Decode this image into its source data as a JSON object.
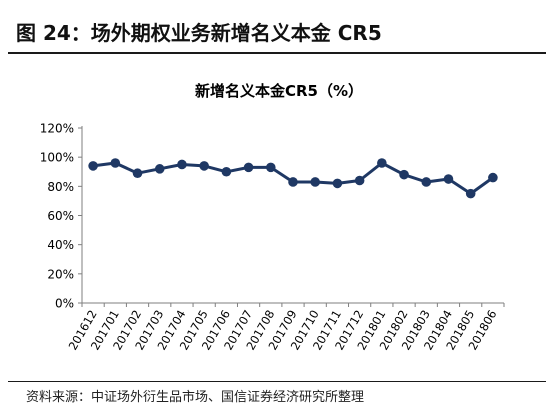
{
  "figure": {
    "title": "图 24：场外期权业务新增名义本金 CR5",
    "source": "资料来源：中证场外衍生品市场、国信证券经济研究所整理"
  },
  "chart_data": {
    "type": "line",
    "title": "新增名义本金CR5（%）",
    "xlabel": "",
    "ylabel": "",
    "categories": [
      "201612",
      "201701",
      "201702",
      "201703",
      "201704",
      "201705",
      "201706",
      "201707",
      "201708",
      "201709",
      "201710",
      "201711",
      "201712",
      "201801",
      "201802",
      "201803",
      "201804",
      "201805",
      "201806"
    ],
    "series": [
      {
        "name": "",
        "values": [
          94,
          96,
          89,
          92,
          95,
          94,
          90,
          93,
          93,
          83,
          83,
          82,
          84,
          96,
          88,
          83,
          85,
          75,
          86
        ]
      }
    ],
    "y_ticks": [
      "0%",
      "20%",
      "40%",
      "60%",
      "80%",
      "100%",
      "120%"
    ],
    "ylim": [
      0,
      120
    ],
    "grid": false,
    "legend": "none",
    "colors": {
      "line": "#1f3864",
      "marker": "#1f3864",
      "axis": "#7f7f7f",
      "text": "#000000"
    }
  }
}
